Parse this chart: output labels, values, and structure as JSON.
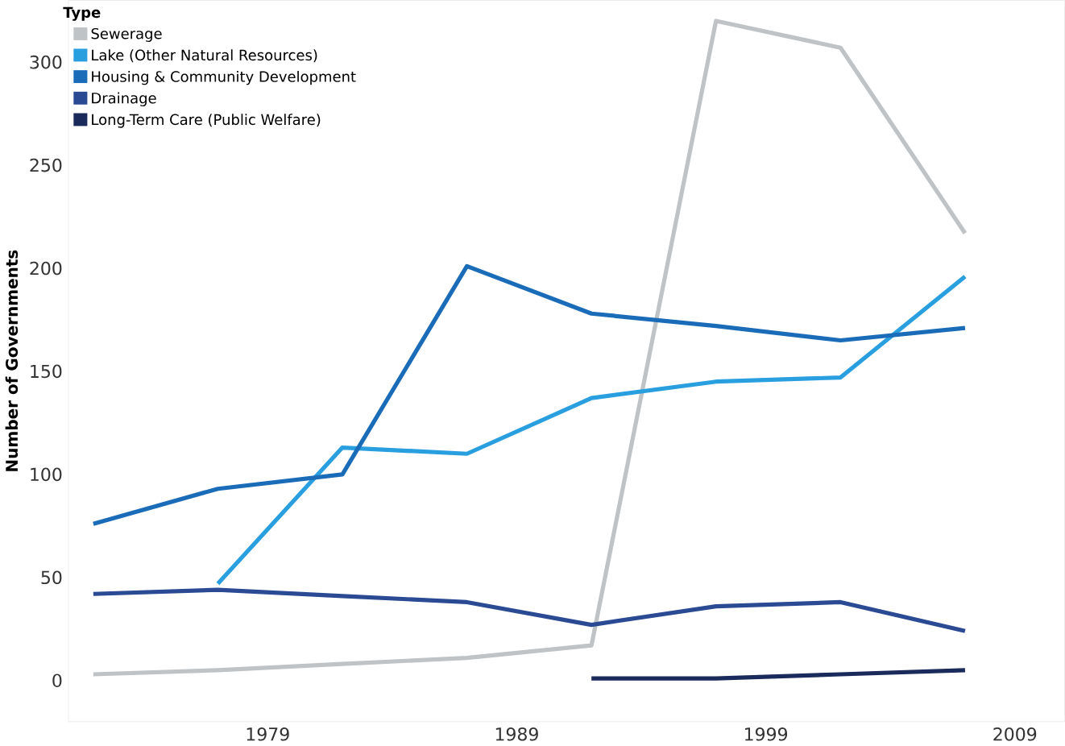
{
  "chart_data": {
    "type": "line",
    "ylabel": "Number of Governments",
    "legend_title": "Type",
    "legend": "top left",
    "grid": false,
    "marker": "none",
    "line_style": "solid",
    "x": [
      1972,
      1977,
      1982,
      1987,
      1992,
      1997,
      2002,
      2007
    ],
    "xlim": [
      1971,
      2011
    ],
    "xticks": [
      1979,
      1989,
      1999,
      2009
    ],
    "ylim": [
      -20,
      330
    ],
    "yticks": [
      0,
      50,
      100,
      150,
      200,
      250,
      300
    ],
    "series": [
      {
        "name": "Sewerage",
        "color": "#bfc3c6",
        "values": [
          3,
          5,
          8,
          11,
          17,
          320,
          307,
          217
        ]
      },
      {
        "name": "Lake (Other Natural Resources)",
        "color": "#2a9fe0",
        "values": [
          null,
          47,
          113,
          110,
          137,
          145,
          147,
          196
        ]
      },
      {
        "name": "Housing & Community Development",
        "color": "#1a6bb8",
        "values": [
          76,
          93,
          100,
          201,
          178,
          172,
          165,
          171
        ]
      },
      {
        "name": "Drainage",
        "color": "#2a4a94",
        "values": [
          42,
          44,
          41,
          38,
          27,
          36,
          38,
          24
        ]
      },
      {
        "name": "Long-Term Care (Public Welfare)",
        "color": "#1a2a5a",
        "values": [
          null,
          null,
          null,
          null,
          1,
          1,
          3,
          5
        ]
      }
    ]
  }
}
